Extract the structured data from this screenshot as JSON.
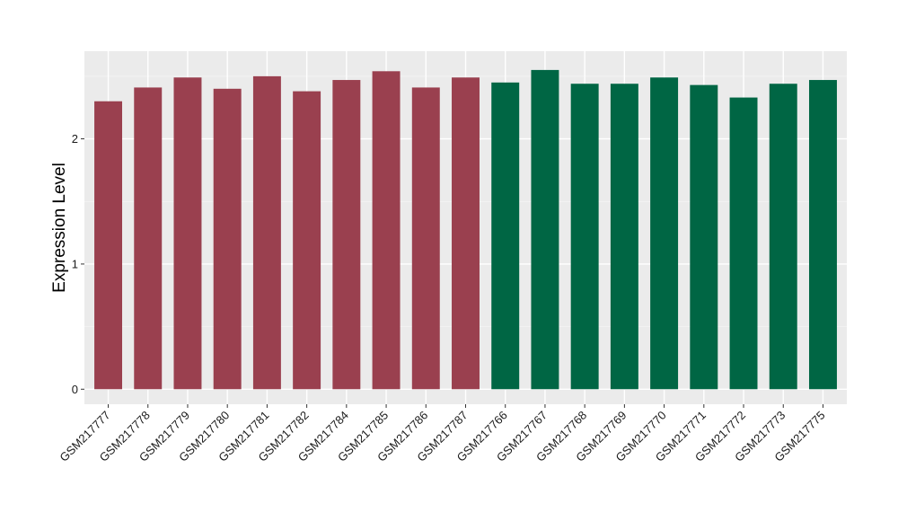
{
  "chart_data": {
    "type": "bar",
    "title": "",
    "xlabel": "",
    "ylabel": "Expression Level",
    "ylim": [
      -0.12,
      2.7
    ],
    "yticks": [
      0,
      1,
      2
    ],
    "grid": true,
    "legend": "none",
    "colors": {
      "panel_background": "#ebebeb",
      "grid_major": "#ffffff",
      "group_1": "#9a404f",
      "group_2": "#006644"
    },
    "categories": [
      "GSM217777",
      "GSM217778",
      "GSM217779",
      "GSM217780",
      "GSM217781",
      "GSM217782",
      "GSM217784",
      "GSM217785",
      "GSM217786",
      "GSM217787",
      "GSM217766",
      "GSM217767",
      "GSM217768",
      "GSM217769",
      "GSM217770",
      "GSM217771",
      "GSM217772",
      "GSM217773",
      "GSM217775"
    ],
    "values": [
      2.3,
      2.41,
      2.49,
      2.4,
      2.5,
      2.38,
      2.47,
      2.54,
      2.41,
      2.49,
      2.45,
      2.55,
      2.44,
      2.44,
      2.49,
      2.43,
      2.33,
      2.44,
      2.47
    ],
    "bar_colors": [
      "#9a404f",
      "#9a404f",
      "#9a404f",
      "#9a404f",
      "#9a404f",
      "#9a404f",
      "#9a404f",
      "#9a404f",
      "#9a404f",
      "#9a404f",
      "#006644",
      "#006644",
      "#006644",
      "#006644",
      "#006644",
      "#006644",
      "#006644",
      "#006644",
      "#006644"
    ]
  }
}
